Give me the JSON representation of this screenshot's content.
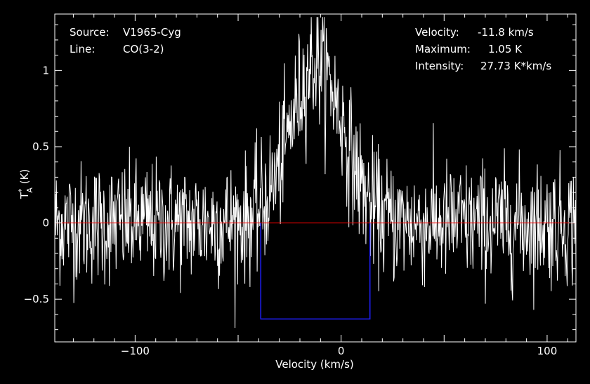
{
  "annotations": {
    "source_label": "Source:",
    "source_value": "V1965-Cyg",
    "line_label": "Line:",
    "line_value": "CO(3-2)",
    "velocity_label": "Velocity:",
    "velocity_value": "-11.8 km/s",
    "maximum_label": "Maximum:",
    "maximum_value": "1.05 K",
    "intensity_label": "Intensity:",
    "intensity_value": "27.73 K*km/s"
  },
  "colors": {
    "background": "#000000",
    "spectrum": "#ffffff",
    "baseline": "#ff0000",
    "window": "#2020ff",
    "axes": "#ffffff"
  },
  "chart_data": {
    "type": "line",
    "xlabel": "Velocity (km/s)",
    "ylabel_main": "T",
    "ylabel_sup": "*",
    "ylabel_sub": "A",
    "ylabel_unit": "(K)",
    "xlim": [
      -139,
      114
    ],
    "ylim": [
      -0.78,
      1.37
    ],
    "x_ticks": [
      -100,
      0,
      100
    ],
    "x_tick_labels": [
      "−100",
      "0",
      "100"
    ],
    "y_ticks": [
      -0.5,
      0,
      0.5,
      1
    ],
    "y_tick_labels": [
      "−0.5",
      "0",
      "0.5",
      "1"
    ],
    "baseline_y": 0,
    "line_window": {
      "x_start": -39,
      "x_end": 14,
      "y": -0.63
    },
    "series": [
      {
        "rms": 0.2,
        "peak_velocity": -11.8,
        "peak_temperature": 1.05,
        "line_width_fwhm": 30,
        "x_start": -139,
        "x_end": 114,
        "channel_width": 0.25
      }
    ]
  }
}
